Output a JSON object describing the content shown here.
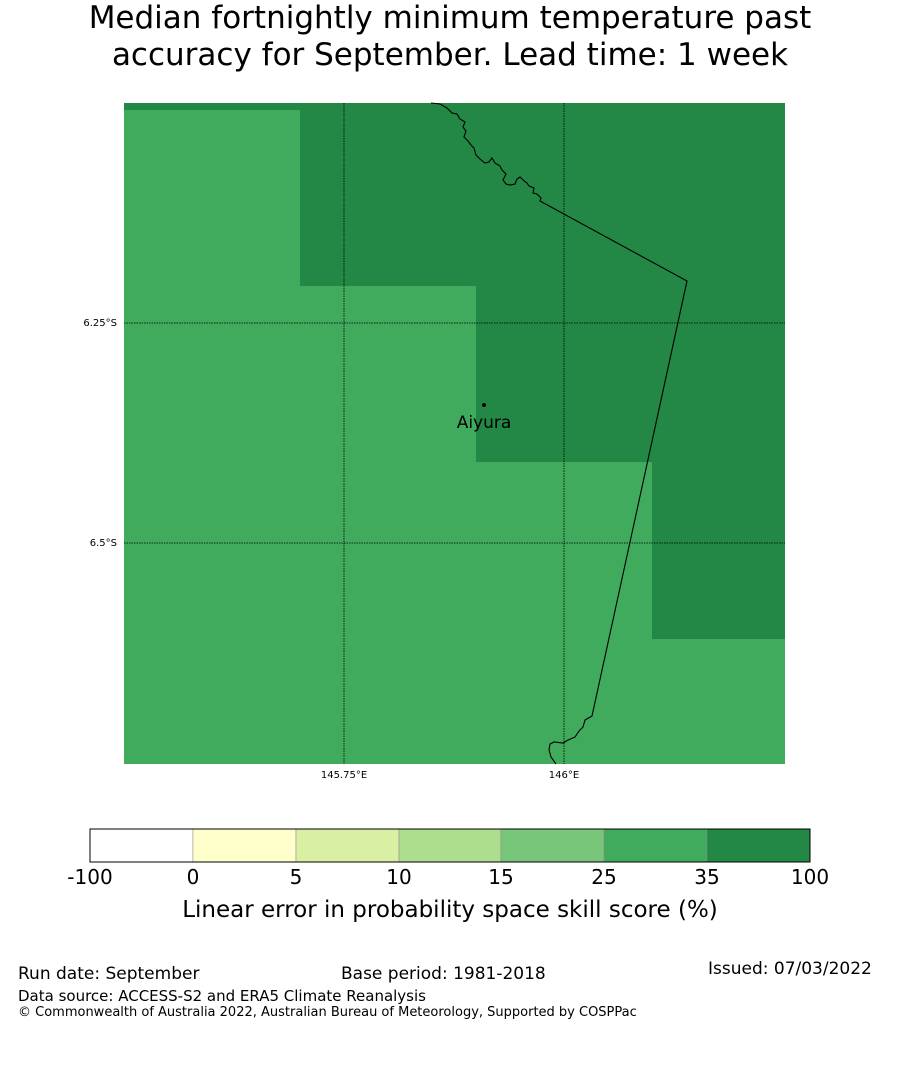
{
  "title": {
    "line1": "Median fortnightly minimum temperature past",
    "line2": "accuracy for September. Lead time: 1 week"
  },
  "map": {
    "lat_labels": [
      "6.25°S",
      "6.5°S"
    ],
    "lon_labels": [
      "145.75°E",
      "146°E"
    ],
    "place_label": "Aiyura",
    "colors": {
      "ocean_35_100": "#238745",
      "land_25_35": "#41ab5d"
    }
  },
  "colorbar": {
    "tick_labels": [
      "-100",
      "0",
      "5",
      "10",
      "15",
      "25",
      "35",
      "100"
    ],
    "colors": [
      "#ffffff",
      "#ffffcc",
      "#d9f0a3",
      "#addd8e",
      "#78c679",
      "#41ab5d",
      "#238745"
    ],
    "label": "Linear error in probability space skill score (%)"
  },
  "footer": {
    "run_date": "Run date: September",
    "base_period": "Base period: 1981-2018",
    "issued": "Issued: 07/03/2022",
    "data_source": "Data source: ACCESS-S2 and ERA5 Climate Reanalysis",
    "copyright": "© Commonwealth of Australia 2022, Australian Bureau of Meteorology, Supported by COSPPac"
  }
}
